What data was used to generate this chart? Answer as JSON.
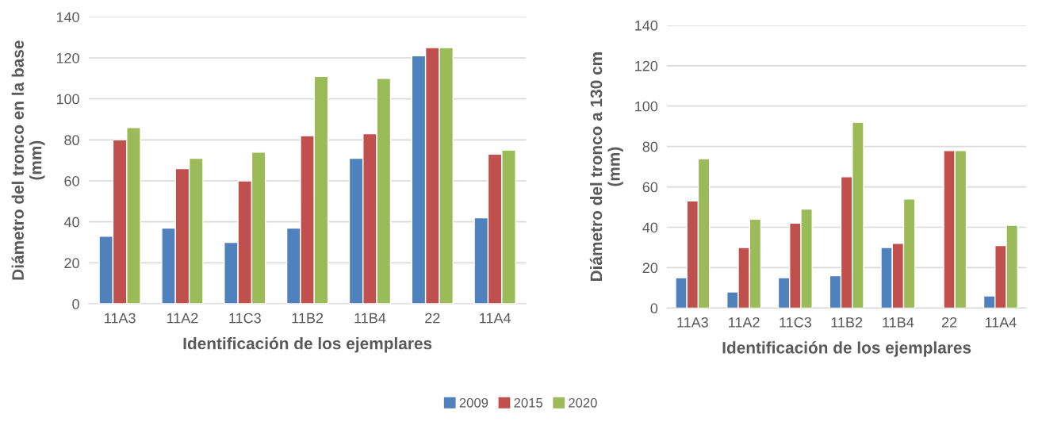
{
  "chart_data": [
    {
      "type": "bar",
      "xlabel": "Identificación de los ejemplares",
      "ylabel": "Diámetro del tronco en la base\n(mm)",
      "categories": [
        "11A3",
        "11A2",
        "11C3",
        "11B2",
        "11B4",
        "22",
        "11A4"
      ],
      "ylim": [
        0,
        140
      ],
      "yticks": [
        0,
        20,
        40,
        60,
        80,
        100,
        120,
        140
      ],
      "grid": "y",
      "legend": "bottom",
      "series": [
        {
          "name": "2009",
          "color": "#4f81bd",
          "values": [
            33,
            37,
            30,
            37,
            71,
            121,
            42
          ]
        },
        {
          "name": "2015",
          "color": "#c0504d",
          "values": [
            80,
            66,
            60,
            82,
            83,
            125,
            73
          ]
        },
        {
          "name": "2020",
          "color": "#9bbb59",
          "values": [
            86,
            71,
            74,
            111,
            110,
            125,
            75
          ]
        }
      ]
    },
    {
      "type": "bar",
      "xlabel": "Identificación de los ejemplares",
      "ylabel": "Diámetro del tronco a 130 cm\n(mm)",
      "categories": [
        "11A3",
        "11A2",
        "11C3",
        "11B2",
        "11B4",
        "22",
        "11A4"
      ],
      "ylim": [
        0,
        140
      ],
      "yticks": [
        0,
        20,
        40,
        60,
        80,
        100,
        120,
        140
      ],
      "grid": "y",
      "legend": "bottom",
      "series": [
        {
          "name": "2009",
          "color": "#4f81bd",
          "values": [
            15,
            8,
            15,
            16,
            30,
            null,
            6
          ]
        },
        {
          "name": "2015",
          "color": "#c0504d",
          "values": [
            53,
            30,
            42,
            65,
            32,
            78,
            31
          ]
        },
        {
          "name": "2020",
          "color": "#9bbb59",
          "values": [
            74,
            44,
            49,
            92,
            54,
            78,
            41
          ]
        }
      ]
    }
  ]
}
